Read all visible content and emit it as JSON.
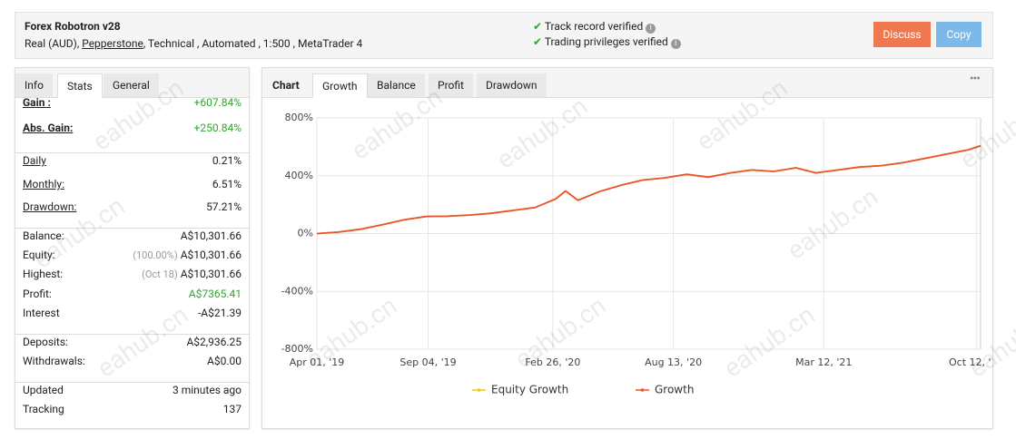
{
  "header": {
    "title": "Forex Robotron v28",
    "account_type": "Real (AUD),",
    "broker": "Pepperstone",
    "details": ", Technical , Automated , 1:500 , MetaTrader 4",
    "checks": [
      "Track record verified",
      "Trading privileges verified"
    ],
    "buttons": [
      "Discuss",
      "Copy"
    ]
  },
  "watermark": "eahub.cn",
  "stats": {
    "tabs": [
      "Info",
      "Stats",
      "General"
    ],
    "active_tab": 1,
    "groups": [
      [
        {
          "label": "Gain :",
          "value": "+607.84%",
          "color": "#2ea62e"
        },
        {
          "label": "Abs. Gain:",
          "value": "+250.84%",
          "color": "#2ea62e"
        }
      ],
      [
        {
          "label": "Daily",
          "value": "0.21%"
        },
        {
          "label": "Monthly:",
          "value": "6.51%"
        },
        {
          "label": "Drawdown:",
          "value": "57.21%"
        }
      ],
      [
        {
          "label": "Balance:",
          "value": "A$10,301.66"
        },
        {
          "label": "Equity:",
          "note": "(100.00%)",
          "value": "A$10,301.66"
        },
        {
          "label": "Highest:",
          "note": "(Oct 18)",
          "value": "A$10,301.66"
        },
        {
          "label": "Profit:",
          "value": "A$7365.41",
          "color": "#2ea62e"
        },
        {
          "label": "Interest",
          "value": "-A$21.39"
        }
      ],
      [
        {
          "label": "Deposits:",
          "value": "A$2,936.25"
        },
        {
          "label": "Withdrawals:",
          "value": "A$0.00"
        }
      ],
      [
        {
          "label": "Updated",
          "value": "3 minutes ago"
        },
        {
          "label": "Tracking",
          "value": "137"
        }
      ]
    ]
  },
  "chart_panel": {
    "label": "Chart",
    "tabs": [
      "Growth",
      "Balance",
      "Profit",
      "Drawdown"
    ],
    "active_tab": 0
  },
  "chart_data": {
    "type": "line",
    "x": [
      "2019-04-01",
      "2019-05-01",
      "2019-06-01",
      "2019-07-01",
      "2019-08-01",
      "2019-09-01",
      "2019-10-01",
      "2019-11-01",
      "2019-12-01",
      "2020-01-01",
      "2020-02-01",
      "2020-03-01",
      "2020-03-15",
      "2020-04-01",
      "2020-05-01",
      "2020-06-01",
      "2020-07-01",
      "2020-08-01",
      "2020-09-01",
      "2020-10-01",
      "2020-11-01",
      "2020-12-01",
      "2021-01-01",
      "2021-02-01",
      "2021-03-01",
      "2021-04-01",
      "2021-05-01",
      "2021-06-01",
      "2021-07-01",
      "2021-08-01",
      "2021-09-01",
      "2021-10-01",
      "2021-10-18"
    ],
    "series": [
      {
        "name": "Equity Growth",
        "color": "#f5c518",
        "values": [
          0,
          10,
          30,
          60,
          95,
          118,
          120,
          128,
          140,
          160,
          180,
          240,
          295,
          230,
          290,
          335,
          370,
          385,
          410,
          390,
          420,
          440,
          430,
          455,
          420,
          440,
          460,
          470,
          490,
          520,
          550,
          580,
          607.84
        ]
      },
      {
        "name": "Growth",
        "color": "#e8542f",
        "values": [
          0,
          10,
          30,
          60,
          95,
          118,
          120,
          128,
          140,
          160,
          180,
          240,
          295,
          230,
          290,
          335,
          370,
          385,
          410,
          390,
          420,
          440,
          430,
          455,
          420,
          440,
          460,
          470,
          490,
          520,
          550,
          580,
          607.84
        ]
      }
    ],
    "xlim": [
      "2019-04-01",
      "2021-10-18"
    ],
    "xticks": [
      {
        "value": "2019-04-01",
        "label": "Apr 01, '19"
      },
      {
        "value": "2019-09-04",
        "label": "Sep 04, '19"
      },
      {
        "value": "2020-02-26",
        "label": "Feb 26, '20"
      },
      {
        "value": "2020-08-13",
        "label": "Aug 13, '20"
      },
      {
        "value": "2021-03-12",
        "label": "Mar 12, '21"
      },
      {
        "value": "2021-10-12",
        "label": "Oct 12, '21"
      }
    ],
    "ylim": [
      -800,
      800
    ],
    "yticks": [
      {
        "value": -800,
        "label": "-800%"
      },
      {
        "value": -400,
        "label": "-400%"
      },
      {
        "value": 0,
        "label": "0%"
      },
      {
        "value": 400,
        "label": "400%"
      },
      {
        "value": 800,
        "label": "800%"
      }
    ],
    "grid": true
  }
}
